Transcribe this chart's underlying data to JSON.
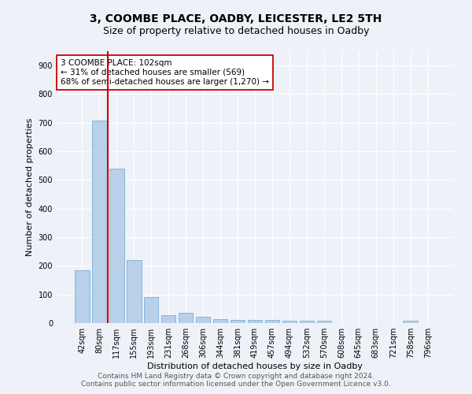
{
  "title": "3, COOMBE PLACE, OADBY, LEICESTER, LE2 5TH",
  "subtitle": "Size of property relative to detached houses in Oadby",
  "xlabel": "Distribution of detached houses by size in Oadby",
  "ylabel": "Number of detached properties",
  "categories": [
    "42sqm",
    "80sqm",
    "117sqm",
    "155sqm",
    "193sqm",
    "231sqm",
    "268sqm",
    "306sqm",
    "344sqm",
    "381sqm",
    "419sqm",
    "457sqm",
    "494sqm",
    "532sqm",
    "570sqm",
    "608sqm",
    "645sqm",
    "683sqm",
    "721sqm",
    "758sqm",
    "796sqm"
  ],
  "values": [
    185,
    707,
    540,
    221,
    91,
    27,
    37,
    23,
    15,
    12,
    12,
    10,
    9,
    9,
    8,
    0,
    0,
    0,
    0,
    9,
    0
  ],
  "bar_color": "#b8d0ea",
  "bar_edge_color": "#7aafd4",
  "vline_color": "#cc0000",
  "vline_x_index": 1.5,
  "annotation_text": "3 COOMBE PLACE: 102sqm\n← 31% of detached houses are smaller (569)\n68% of semi-detached houses are larger (1,270) →",
  "annotation_box_facecolor": "#ffffff",
  "annotation_box_edgecolor": "#cc0000",
  "annotation_fontsize": 7.5,
  "ylim": [
    0,
    950
  ],
  "yticks": [
    0,
    100,
    200,
    300,
    400,
    500,
    600,
    700,
    800,
    900
  ],
  "title_fontsize": 10,
  "subtitle_fontsize": 9,
  "xlabel_fontsize": 8,
  "ylabel_fontsize": 8,
  "tick_fontsize": 7,
  "footer": "Contains HM Land Registry data © Crown copyright and database right 2024.\nContains public sector information licensed under the Open Government Licence v3.0.",
  "footer_fontsize": 6.5,
  "bg_color": "#eef2f8",
  "plot_bg_color": "#eef2f8",
  "grid_color": "#ffffff"
}
